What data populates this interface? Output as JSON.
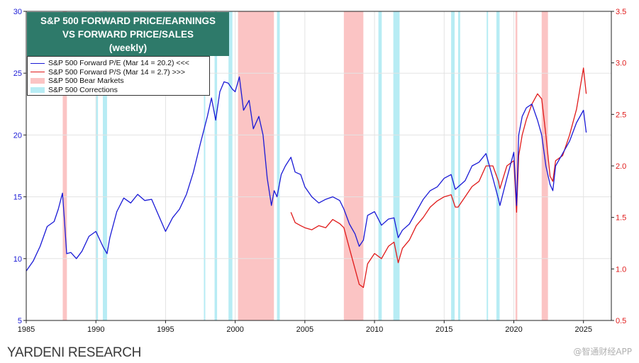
{
  "title": {
    "line1": "S&P 500 FORWARD PRICE/EARNINGS",
    "line2": "VS FORWARD PRICE/SALES",
    "line3": "(weekly)"
  },
  "legend": {
    "pe": "S&P 500 Forward P/E (Mar 14 = 20.2) <<<",
    "ps": "S&P 500 Forward P/S (Mar 14 = 2.7) >>>",
    "bear": "S&P 500 Bear Markets",
    "corrections": "S&P 500 Corrections"
  },
  "footer": {
    "source": "YARDENI RESEARCH",
    "watermark": "@智通财经APP"
  },
  "colors": {
    "pe": "#1a1ad6",
    "ps": "#e01a1a",
    "bear": "#fbc4c4",
    "correction": "#b7ecf4",
    "title_bg": "#2e7a6a"
  },
  "chart_data": {
    "type": "line",
    "x_axis": {
      "min": 1985,
      "max": 2027,
      "ticks": [
        "1985",
        "1990",
        "1995",
        "2000",
        "2005",
        "2010",
        "2015",
        "2020",
        "2025"
      ]
    },
    "y_left": {
      "min": 5,
      "max": 30,
      "ticks": [
        "5",
        "10",
        "15",
        "20",
        "25",
        "30"
      ]
    },
    "y_right": {
      "min": 0.5,
      "max": 3.5,
      "ticks": [
        "0.5",
        "1.0",
        "1.5",
        "2.0",
        "2.5",
        "3.0",
        "3.5"
      ]
    },
    "bear_markets": [
      [
        1987.62,
        1987.92
      ],
      [
        2000.2,
        2002.78
      ],
      [
        2007.8,
        2009.2
      ],
      [
        2020.12,
        2020.25
      ],
      [
        2022.0,
        2022.45
      ]
    ],
    "corrections": [
      [
        1990.0,
        1990.15
      ],
      [
        1990.5,
        1990.8
      ],
      [
        1997.75,
        1997.85
      ],
      [
        1998.52,
        1998.7
      ],
      [
        1999.52,
        1999.8
      ],
      [
        2003.0,
        2003.2
      ],
      [
        2010.28,
        2010.52
      ],
      [
        2011.35,
        2011.8
      ],
      [
        2015.5,
        2015.75
      ],
      [
        2016.0,
        2016.15
      ],
      [
        2018.05,
        2018.15
      ],
      [
        2018.75,
        2018.98
      ]
    ],
    "series": [
      {
        "name": "S&P 500 Forward P/E",
        "axis": "left",
        "x": [
          1985.0,
          1985.5,
          1986.0,
          1986.5,
          1987.0,
          1987.3,
          1987.6,
          1987.75,
          1987.9,
          1988.2,
          1988.6,
          1989.0,
          1989.5,
          1990.0,
          1990.5,
          1990.8,
          1991.0,
          1991.5,
          1992.0,
          1992.5,
          1993.0,
          1993.5,
          1994.0,
          1994.5,
          1995.0,
          1995.5,
          1996.0,
          1996.5,
          1997.0,
          1997.5,
          1998.0,
          1998.3,
          1998.6,
          1998.9,
          1999.2,
          1999.5,
          1999.8,
          2000.0,
          2000.3,
          2000.6,
          2001.0,
          2001.3,
          2001.7,
          2002.0,
          2002.3,
          2002.6,
          2002.8,
          2003.0,
          2003.3,
          2003.6,
          2004.0,
          2004.3,
          2004.7,
          2005.0,
          2005.5,
          2006.0,
          2006.5,
          2007.0,
          2007.5,
          2007.8,
          2008.2,
          2008.6,
          2008.9,
          2009.2,
          2009.5,
          2010.0,
          2010.5,
          2011.0,
          2011.4,
          2011.7,
          2012.0,
          2012.5,
          2013.0,
          2013.5,
          2014.0,
          2014.5,
          2015.0,
          2015.5,
          2015.8,
          2016.0,
          2016.5,
          2017.0,
          2017.5,
          2018.0,
          2018.5,
          2018.9,
          2019.0,
          2019.5,
          2020.0,
          2020.2,
          2020.35,
          2020.6,
          2020.9,
          2021.3,
          2021.7,
          2022.0,
          2022.3,
          2022.6,
          2022.8,
          2023.0,
          2023.5,
          2024.0,
          2024.5,
          2025.0,
          2025.2
        ],
        "values": [
          9.0,
          9.8,
          11.0,
          12.6,
          13.0,
          14.0,
          15.3,
          13.0,
          10.4,
          10.5,
          10.0,
          10.6,
          11.8,
          12.2,
          11.0,
          10.4,
          11.7,
          13.8,
          14.9,
          14.5,
          15.2,
          14.7,
          14.8,
          13.5,
          12.2,
          13.3,
          14.0,
          15.2,
          17.0,
          19.3,
          21.5,
          23.0,
          21.2,
          23.5,
          24.3,
          24.2,
          23.7,
          23.5,
          24.7,
          22.0,
          22.8,
          20.5,
          21.5,
          20.0,
          16.5,
          14.3,
          15.5,
          15.0,
          16.8,
          17.5,
          18.2,
          17.0,
          16.8,
          15.8,
          15.0,
          14.5,
          14.8,
          15.0,
          14.7,
          14.0,
          12.8,
          12.0,
          11.0,
          11.5,
          13.5,
          13.8,
          12.7,
          13.2,
          13.3,
          11.7,
          12.3,
          12.8,
          13.8,
          14.8,
          15.5,
          15.8,
          16.5,
          16.8,
          15.6,
          15.8,
          16.3,
          17.5,
          17.8,
          18.5,
          16.5,
          14.8,
          14.3,
          16.5,
          18.6,
          14.3,
          20.0,
          21.5,
          22.2,
          22.5,
          21.2,
          20.0,
          17.5,
          16.0,
          15.5,
          17.5,
          18.5,
          19.5,
          21.0,
          22.0,
          20.2
        ]
      },
      {
        "name": "S&P 500 Forward P/S",
        "axis": "right",
        "x": [
          2004.0,
          2004.3,
          2004.7,
          2005.0,
          2005.5,
          2006.0,
          2006.5,
          2007.0,
          2007.5,
          2007.8,
          2008.2,
          2008.6,
          2008.9,
          2009.2,
          2009.5,
          2010.0,
          2010.5,
          2011.0,
          2011.4,
          2011.7,
          2012.0,
          2012.5,
          2013.0,
          2013.5,
          2014.0,
          2014.5,
          2015.0,
          2015.5,
          2015.8,
          2016.0,
          2016.5,
          2017.0,
          2017.5,
          2018.0,
          2018.5,
          2018.9,
          2019.0,
          2019.5,
          2020.0,
          2020.2,
          2020.35,
          2020.6,
          2020.9,
          2021.3,
          2021.7,
          2022.0,
          2022.3,
          2022.6,
          2022.8,
          2023.0,
          2023.5,
          2024.0,
          2024.5,
          2025.0,
          2025.2
        ],
        "values": [
          1.55,
          1.45,
          1.42,
          1.4,
          1.38,
          1.42,
          1.4,
          1.48,
          1.44,
          1.4,
          1.2,
          1.0,
          0.85,
          0.82,
          1.05,
          1.15,
          1.1,
          1.22,
          1.26,
          1.06,
          1.2,
          1.28,
          1.42,
          1.5,
          1.6,
          1.66,
          1.7,
          1.72,
          1.6,
          1.6,
          1.7,
          1.8,
          1.85,
          2.0,
          2.0,
          1.85,
          1.78,
          2.0,
          2.05,
          1.55,
          2.1,
          2.3,
          2.45,
          2.6,
          2.7,
          2.65,
          2.3,
          1.9,
          1.85,
          2.05,
          2.1,
          2.3,
          2.55,
          2.95,
          2.7
        ]
      }
    ]
  }
}
